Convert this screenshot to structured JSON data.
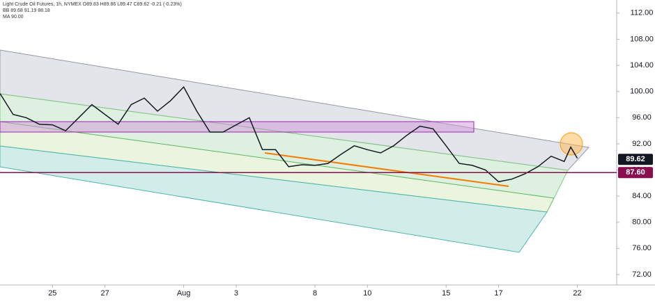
{
  "chart_data": {
    "type": "line",
    "legend": [
      "Light Crude Oil Futures, 1h, NYMEX  O89.83 H89.86 L89.47 C89.62 -0.21 (-0.23%)",
      "BB 89.68 91.19 88.18",
      "MA 90.00"
    ],
    "x": [
      -2,
      -1.5,
      -1,
      -0.5,
      0,
      0.5,
      1,
      1.5,
      2,
      2.5,
      3,
      3.5,
      4,
      4.5,
      5,
      5.5,
      6,
      6.5,
      7,
      7.5,
      8,
      8.5,
      9,
      9.5,
      10,
      10.5,
      11,
      11.5,
      12,
      12.5,
      13,
      13.5,
      14,
      14.5,
      15,
      15.5,
      16,
      16.5,
      17,
      17.5,
      18,
      18.5,
      19,
      19.5,
      19.75,
      20
    ],
    "series": [
      {
        "name": "Light Crude Oil Futures",
        "color": "#131722",
        "values": [
          99.7,
          96.5,
          96,
          95,
          94.9,
          94,
          96,
          98,
          96.5,
          95,
          98,
          99,
          97,
          98.6,
          100.7,
          97,
          93.8,
          93.8,
          94.9,
          96,
          91.1,
          91.1,
          88.5,
          88.8,
          88.7,
          89,
          90.4,
          91.7,
          91.1,
          90.6,
          91.7,
          93.3,
          94.7,
          94.3,
          91.7,
          89,
          88.7,
          88,
          86.2,
          86.6,
          87.4,
          88.5,
          90.1,
          89.3,
          91.5,
          89.8
        ]
      }
    ],
    "last_price": {
      "value": 89.62,
      "label": "89.62",
      "color": "#131722"
    },
    "level": {
      "value": 87.6,
      "label": "87.60",
      "color": "#880e4f"
    },
    "xlim": [
      -2,
      21.5
    ],
    "xticks": [
      {
        "value": 0,
        "label": "25"
      },
      {
        "value": 2,
        "label": "27"
      },
      {
        "value": 5,
        "label": "Aug"
      },
      {
        "value": 7,
        "label": "3"
      },
      {
        "value": 10,
        "label": "8"
      },
      {
        "value": 12,
        "label": "10"
      },
      {
        "value": 15,
        "label": "15"
      },
      {
        "value": 17,
        "label": "17"
      },
      {
        "value": 20,
        "label": "22"
      }
    ],
    "ylim": [
      70.4,
      114.0
    ],
    "yticks": [
      {
        "value": 72,
        "label": "72.00"
      },
      {
        "value": 76,
        "label": "76.00"
      },
      {
        "value": 80,
        "label": "80.00"
      },
      {
        "value": 84,
        "label": "84.00"
      },
      {
        "value": 88,
        "label": "88.00"
      },
      {
        "value": 92,
        "label": "92.00"
      },
      {
        "value": 96,
        "label": "96.00"
      },
      {
        "value": 100,
        "label": "100.00"
      },
      {
        "value": 104,
        "label": "104.00"
      },
      {
        "value": 108,
        "label": "108.00"
      },
      {
        "value": 112,
        "label": "112.00"
      }
    ]
  }
}
